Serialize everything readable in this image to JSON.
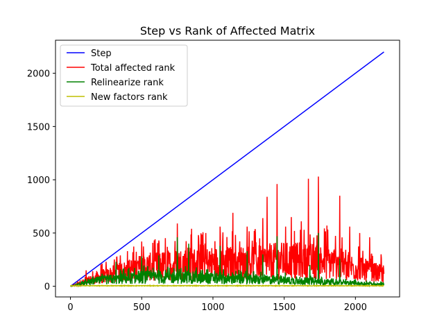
{
  "chart_data": {
    "type": "line",
    "title": "Step vs Rank of Affected Matrix",
    "xlabel": "",
    "ylabel": "",
    "xlim": [
      -105,
      2310
    ],
    "ylim": [
      -100,
      2310
    ],
    "xticks": [
      0,
      500,
      1000,
      1500,
      2000
    ],
    "yticks": [
      0,
      500,
      1000,
      1500,
      2000
    ],
    "legend_position": "top-left",
    "series": [
      {
        "name": "Step",
        "color": "#0000ff",
        "style": "linear",
        "x": [
          0,
          2200
        ],
        "y": [
          0,
          2200
        ]
      },
      {
        "name": "Total affected rank",
        "color": "#ff0000",
        "style": "noisy",
        "x_range": [
          0,
          2200
        ],
        "baseline": [
          [
            0,
            0
          ],
          [
            200,
            90
          ],
          [
            500,
            190
          ],
          [
            800,
            230
          ],
          [
            1200,
            240
          ],
          [
            1500,
            260
          ],
          [
            1800,
            250
          ],
          [
            2200,
            120
          ]
        ],
        "peaks": [
          [
            110,
            150
          ],
          [
            250,
            230
          ],
          [
            400,
            330
          ],
          [
            500,
            420
          ],
          [
            620,
            430
          ],
          [
            750,
            590
          ],
          [
            850,
            540
          ],
          [
            950,
            500
          ],
          [
            1050,
            560
          ],
          [
            1140,
            690
          ],
          [
            1240,
            560
          ],
          [
            1350,
            640
          ],
          [
            1380,
            840
          ],
          [
            1450,
            960
          ],
          [
            1510,
            560
          ],
          [
            1550,
            650
          ],
          [
            1620,
            610
          ],
          [
            1670,
            1010
          ],
          [
            1740,
            1030
          ],
          [
            1800,
            570
          ],
          [
            1890,
            850
          ],
          [
            1960,
            560
          ],
          [
            2030,
            500
          ],
          [
            2100,
            460
          ],
          [
            2180,
            300
          ]
        ]
      },
      {
        "name": "Relinearize rank",
        "color": "#008000",
        "style": "noisy",
        "x_range": [
          0,
          2200
        ],
        "baseline": [
          [
            0,
            0
          ],
          [
            200,
            60
          ],
          [
            500,
            90
          ],
          [
            800,
            90
          ],
          [
            1200,
            70
          ],
          [
            1500,
            60
          ],
          [
            1800,
            40
          ],
          [
            2200,
            20
          ]
        ],
        "peaks": [
          [
            320,
            230
          ],
          [
            500,
            280
          ],
          [
            620,
            290
          ],
          [
            750,
            460
          ],
          [
            830,
            400
          ],
          [
            1050,
            380
          ],
          [
            1240,
            330
          ],
          [
            1350,
            300
          ],
          [
            1450,
            470
          ],
          [
            1680,
            200
          ],
          [
            1740,
            500
          ],
          [
            1890,
            260
          ]
        ]
      },
      {
        "name": "New factors rank",
        "color": "#bfbf00",
        "style": "noisy",
        "x_range": [
          0,
          2200
        ],
        "baseline": [
          [
            0,
            5
          ],
          [
            2200,
            5
          ]
        ],
        "peaks": []
      }
    ]
  }
}
